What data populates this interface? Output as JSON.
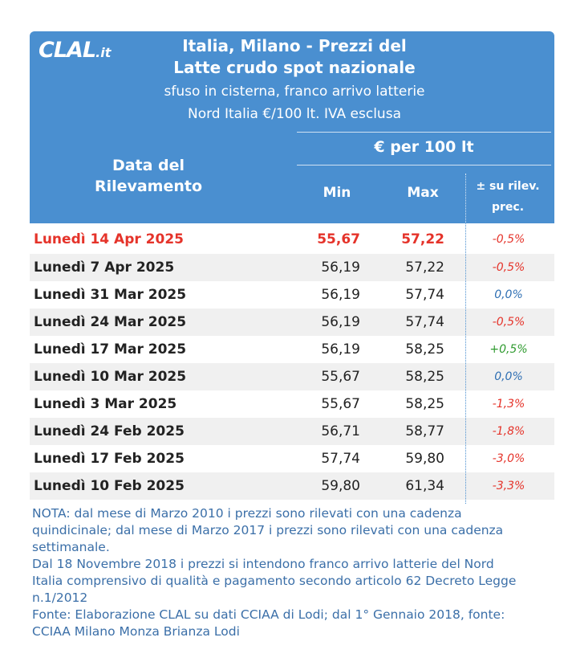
{
  "header": {
    "logo_main": "CLAL",
    "logo_suffix": ".it",
    "title_line1": "Italia, Milano - Prezzi del",
    "title_line2": "Latte crudo spot nazionale",
    "subtitle_line1": "sfuso in cisterna, franco arrivo latterie",
    "subtitle_line2": "Nord Italia €/100 lt. IVA esclusa",
    "unit_group": "€ per 100 lt",
    "date_col_line1": "Data del",
    "date_col_line2": "Rilevamento",
    "min_col": "Min",
    "max_col": "Max",
    "change_col_line1": "± su rilev.",
    "change_col_line2": "prec."
  },
  "rows": [
    {
      "date": "Lunedì 14 Apr 2025",
      "min": "55,67",
      "max": "57,22",
      "change": "-0,5%",
      "trend": "neg"
    },
    {
      "date": "Lunedì 7 Apr 2025",
      "min": "56,19",
      "max": "57,22",
      "change": "-0,5%",
      "trend": "neg"
    },
    {
      "date": "Lunedì 31 Mar 2025",
      "min": "56,19",
      "max": "57,74",
      "change": "0,0%",
      "trend": "zero"
    },
    {
      "date": "Lunedì 24 Mar 2025",
      "min": "56,19",
      "max": "57,74",
      "change": "-0,5%",
      "trend": "neg"
    },
    {
      "date": "Lunedì 17 Mar 2025",
      "min": "56,19",
      "max": "58,25",
      "change": "+0,5%",
      "trend": "pos"
    },
    {
      "date": "Lunedì 10 Mar 2025",
      "min": "55,67",
      "max": "58,25",
      "change": "0,0%",
      "trend": "zero"
    },
    {
      "date": "Lunedì 3 Mar 2025",
      "min": "55,67",
      "max": "58,25",
      "change": "-1,3%",
      "trend": "neg"
    },
    {
      "date": "Lunedì 24 Feb 2025",
      "min": "56,71",
      "max": "58,77",
      "change": "-1,8%",
      "trend": "neg"
    },
    {
      "date": "Lunedì 17 Feb 2025",
      "min": "57,74",
      "max": "59,80",
      "change": "-3,0%",
      "trend": "neg"
    },
    {
      "date": "Lunedì 10 Feb 2025",
      "min": "59,80",
      "max": "61,34",
      "change": "-3,3%",
      "trend": "neg"
    }
  ],
  "notes": {
    "line1": "NOTA: dal mese di Marzo 2010 i prezzi sono rilevati con una cadenza",
    "line2": "quindicinale; dal mese di Marzo 2017 i prezzi sono rilevati con una cadenza",
    "line3": "settimanale.",
    "line4": "Dal 18 Novembre 2018 i prezzi si intendono franco arrivo latterie del Nord",
    "line5": "Italia comprensivo di qualità e pagamento secondo articolo 62 Decreto Legge",
    "line6": "n.1/2012",
    "line7": "Fonte: Elaborazione CLAL su dati CCIAA di Lodi; dal 1° Gennaio 2018, fonte:",
    "line8": "CCIAA Milano Monza Brianza Lodi"
  },
  "colors": {
    "header_bg": "#4a8fd0",
    "negative": "#e5332a",
    "zero": "#2f6fb3",
    "positive": "#2f9a2f",
    "note_text": "#3b6fa8"
  }
}
